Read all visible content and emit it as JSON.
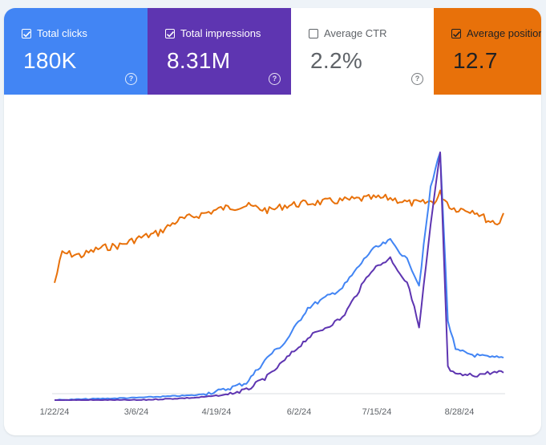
{
  "metrics": [
    {
      "id": "clicks",
      "label": "Total clicks",
      "value": "180K",
      "checked": true,
      "color": "#4285f4"
    },
    {
      "id": "impressions",
      "label": "Total impressions",
      "value": "8.31M",
      "checked": true,
      "color": "#5e35b1"
    },
    {
      "id": "ctr",
      "label": "Average CTR",
      "value": "2.2%",
      "checked": false,
      "color": "#ffffff"
    },
    {
      "id": "position",
      "label": "Average position",
      "value": "12.7",
      "checked": true,
      "color": "#e8710a"
    }
  ],
  "chart_data": {
    "type": "line",
    "x_ticks": [
      "1/22/24",
      "3/6/24",
      "4/19/24",
      "6/2/24",
      "7/15/24",
      "8/28/24"
    ],
    "x_range": [
      "2024-01-22",
      "2024-09-12"
    ],
    "y_axis_shown": false,
    "grid": false,
    "series": [
      {
        "id": "position",
        "color": "#e8710a",
        "x": [
          "2024-01-22",
          "2024-01-26",
          "2024-02-05",
          "2024-02-15",
          "2024-02-25",
          "2024-03-06",
          "2024-03-16",
          "2024-03-26",
          "2024-04-05",
          "2024-04-19",
          "2024-05-01",
          "2024-05-13",
          "2024-05-21",
          "2024-06-02",
          "2024-06-20",
          "2024-07-05",
          "2024-07-15",
          "2024-07-25",
          "2024-08-01",
          "2024-08-08",
          "2024-08-10",
          "2024-08-16",
          "2024-08-28",
          "2024-09-04",
          "2024-09-10",
          "2024-09-12"
        ],
        "values": [
          0.47,
          0.59,
          0.58,
          0.61,
          0.62,
          0.65,
          0.67,
          0.72,
          0.74,
          0.77,
          0.78,
          0.76,
          0.78,
          0.79,
          0.8,
          0.81,
          0.81,
          0.79,
          0.79,
          0.8,
          0.83,
          0.77,
          0.76,
          0.72,
          0.71,
          0.75
        ]
      },
      {
        "id": "clicks",
        "color": "#4285f4",
        "x": [
          "2024-01-22",
          "2024-03-06",
          "2024-04-05",
          "2024-04-19",
          "2024-05-01",
          "2024-05-13",
          "2024-05-21",
          "2024-06-02",
          "2024-06-20",
          "2024-07-05",
          "2024-07-15",
          "2024-07-25",
          "2024-07-30",
          "2024-08-05",
          "2024-08-10",
          "2024-08-14",
          "2024-08-18",
          "2024-08-28",
          "2024-09-05",
          "2024-09-12"
        ],
        "values": [
          0.0,
          0.01,
          0.02,
          0.04,
          0.07,
          0.18,
          0.23,
          0.37,
          0.45,
          0.6,
          0.64,
          0.55,
          0.46,
          0.85,
          1.0,
          0.32,
          0.2,
          0.18,
          0.17,
          0.17
        ]
      },
      {
        "id": "impressions",
        "color": "#5e35b1",
        "x": [
          "2024-01-22",
          "2024-03-06",
          "2024-04-05",
          "2024-04-19",
          "2024-05-01",
          "2024-05-13",
          "2024-05-21",
          "2024-06-02",
          "2024-06-20",
          "2024-07-05",
          "2024-07-15",
          "2024-07-25",
          "2024-07-30",
          "2024-08-05",
          "2024-08-10",
          "2024-08-14",
          "2024-08-18",
          "2024-08-28",
          "2024-09-05",
          "2024-09-12"
        ],
        "values": [
          0.0,
          0.0,
          0.01,
          0.02,
          0.04,
          0.1,
          0.16,
          0.25,
          0.33,
          0.52,
          0.57,
          0.45,
          0.29,
          0.7,
          0.99,
          0.13,
          0.1,
          0.1,
          0.11,
          0.11
        ]
      }
    ]
  }
}
